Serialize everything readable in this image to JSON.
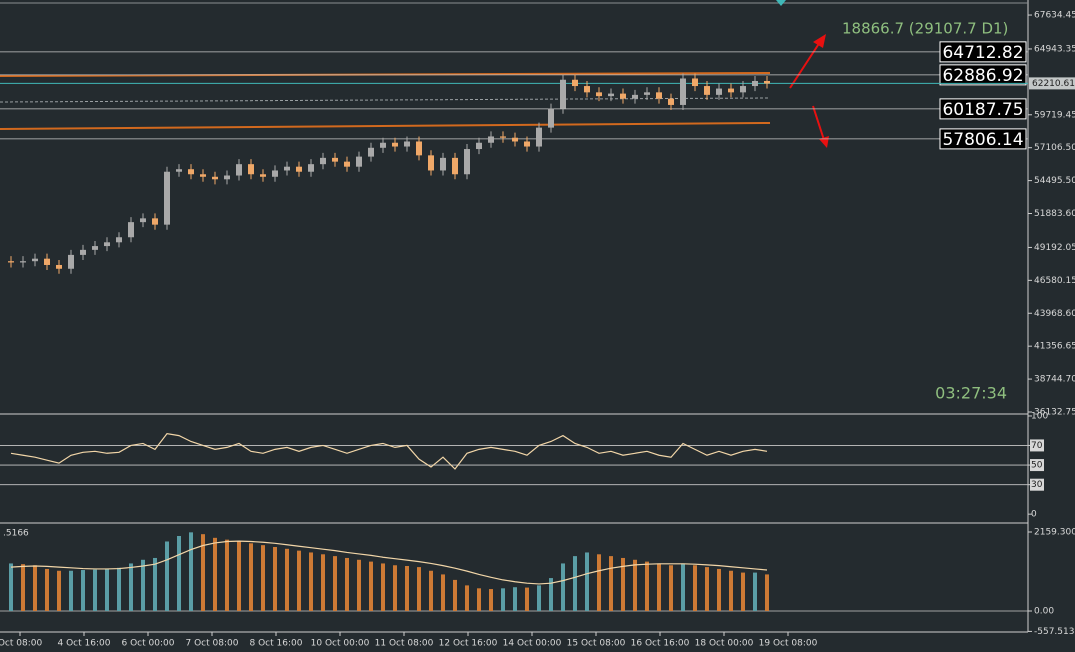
{
  "chart_data": [
    {
      "type": "candlestick",
      "annotation": "18866.7 (29107.7 D1)",
      "timer": "03:27:34",
      "ylim": [
        35974,
        68828
      ],
      "yticks": [
        67634.45,
        64943.35,
        {
          "value": 59719.45,
          "label": "59719.45"
        },
        {
          "value": 57106.5,
          "label": "57106.50"
        },
        {
          "value": 54495.5,
          "label": "54495.50"
        },
        {
          "value": 51883.6,
          "label": "51883.60"
        },
        49192.05,
        46580.15,
        {
          "value": 43968.6,
          "label": "43968.60"
        },
        41356.65,
        {
          "value": 38744.7,
          "label": "38744.70"
        },
        36132.75
      ],
      "current_price": 62210.61,
      "levels": [
        64712.82,
        62886.92,
        60187.75,
        57806.14
      ],
      "bull_color": "#a9a9a9",
      "bear_color": "#f0a868",
      "price_line_color": "#3fb8b8",
      "open": [
        48100,
        48000,
        48100,
        48300,
        47800,
        47500,
        48600,
        49000,
        49300,
        49600,
        50000,
        51200,
        51500,
        51000,
        55200,
        55400,
        55000,
        54800,
        54600,
        54900,
        55800,
        55000,
        54800,
        55300,
        55600,
        55200,
        55800,
        56300,
        56000,
        55600,
        56400,
        57100,
        57500,
        57200,
        57600,
        56500,
        55300,
        56300,
        55000,
        57000,
        57500,
        58000,
        57900,
        57600,
        57200,
        58700,
        60200,
        62500,
        62000,
        61500,
        61200,
        61400,
        61000,
        61300,
        61500,
        61000,
        60500,
        62600,
        62000,
        61300,
        61800,
        61500,
        62000,
        62400
      ],
      "high": [
        48500,
        48500,
        48700,
        48700,
        48200,
        49000,
        49400,
        49700,
        50000,
        50400,
        51600,
        51900,
        51900,
        55600,
        55800,
        55800,
        55400,
        55200,
        55300,
        56200,
        56200,
        55400,
        55700,
        56000,
        56000,
        56200,
        56700,
        56700,
        56400,
        56800,
        57500,
        57900,
        57900,
        58000,
        58000,
        56900,
        56700,
        56700,
        57400,
        57900,
        58400,
        58400,
        58300,
        58000,
        59100,
        60600,
        62900,
        62900,
        62400,
        61900,
        61800,
        61800,
        61700,
        61900,
        61900,
        61400,
        63000,
        63000,
        62400,
        62200,
        62200,
        62400,
        62800,
        62800
      ],
      "low": [
        47600,
        47600,
        47700,
        47400,
        47100,
        47100,
        48200,
        48600,
        48900,
        49200,
        49600,
        50800,
        50600,
        50600,
        54800,
        54600,
        54400,
        54200,
        54200,
        54500,
        54600,
        54400,
        54400,
        54900,
        54800,
        54800,
        55400,
        55600,
        55200,
        55200,
        56000,
        56700,
        56800,
        56800,
        56100,
        54900,
        54900,
        54600,
        54600,
        56600,
        57100,
        57500,
        57200,
        56800,
        56800,
        58300,
        59800,
        61600,
        61100,
        60800,
        60800,
        60600,
        60600,
        60900,
        60600,
        60100,
        60100,
        61600,
        60900,
        60900,
        61100,
        61100,
        61600,
        61800
      ],
      "close": [
        48000,
        48100,
        48300,
        47800,
        47500,
        48600,
        49000,
        49300,
        49600,
        50000,
        51200,
        51500,
        51000,
        55200,
        55400,
        55000,
        54800,
        54600,
        54900,
        55800,
        55000,
        54800,
        55300,
        55600,
        55200,
        55800,
        56300,
        56000,
        55600,
        56400,
        57100,
        57500,
        57200,
        57600,
        56500,
        55300,
        56300,
        55000,
        57000,
        57500,
        58000,
        57900,
        57600,
        57200,
        58700,
        60200,
        62500,
        62000,
        61500,
        61200,
        61400,
        61000,
        61300,
        61500,
        61000,
        60500,
        62600,
        62000,
        61300,
        61800,
        61500,
        62000,
        62400,
        62200
      ]
    },
    {
      "type": "line",
      "ylim": [
        -8,
        101
      ],
      "yticks": [
        100,
        70,
        50,
        30,
        0
      ],
      "levels": [
        70,
        50,
        30
      ],
      "color": "#f2d6a8",
      "values": [
        62,
        60,
        58,
        55,
        52,
        60,
        63,
        64,
        62,
        63,
        70,
        72,
        66,
        82,
        80,
        74,
        70,
        66,
        68,
        72,
        64,
        62,
        66,
        68,
        64,
        68,
        70,
        66,
        62,
        66,
        70,
        72,
        68,
        70,
        56,
        48,
        58,
        46,
        62,
        66,
        68,
        66,
        64,
        60,
        70,
        74,
        80,
        72,
        68,
        62,
        64,
        60,
        62,
        64,
        60,
        58,
        72,
        66,
        60,
        64,
        60,
        64,
        66,
        64
      ]
    },
    {
      "type": "bar",
      "label": ".5166",
      "ylim": [
        -574,
        2378
      ],
      "yticks": [
        2159.3008,
        {
          "value": 0,
          "label": "0.00"
        },
        -557.5132
      ],
      "up_color": "#5b9ea6",
      "down_color": "#cd7a35",
      "signal_color": "#f2d6a8",
      "values": [
        1300,
        1280,
        1250,
        1150,
        1100,
        1100,
        1120,
        1130,
        1150,
        1180,
        1300,
        1400,
        1450,
        1900,
        2050,
        2150,
        2100,
        2000,
        1950,
        1900,
        1850,
        1800,
        1750,
        1700,
        1650,
        1600,
        1550,
        1500,
        1450,
        1400,
        1350,
        1300,
        1250,
        1230,
        1200,
        1100,
        1000,
        850,
        700,
        620,
        600,
        620,
        650,
        640,
        700,
        900,
        1300,
        1500,
        1600,
        1550,
        1500,
        1450,
        1400,
        1350,
        1300,
        1250,
        1300,
        1250,
        1200,
        1150,
        1100,
        1050,
        1050,
        1000
      ],
      "signal": [
        1200,
        1220,
        1230,
        1220,
        1200,
        1180,
        1160,
        1150,
        1150,
        1160,
        1190,
        1230,
        1280,
        1400,
        1540,
        1680,
        1790,
        1860,
        1900,
        1910,
        1900,
        1880,
        1850,
        1810,
        1770,
        1730,
        1690,
        1650,
        1600,
        1560,
        1520,
        1470,
        1430,
        1390,
        1350,
        1300,
        1240,
        1170,
        1090,
        1000,
        920,
        850,
        800,
        760,
        740,
        760,
        830,
        920,
        1020,
        1100,
        1170,
        1220,
        1260,
        1280,
        1290,
        1290,
        1290,
        1280,
        1260,
        1240,
        1210,
        1180,
        1150,
        1120
      ]
    }
  ],
  "time_labels": [
    "Oct 08:00",
    "4 Oct 16:00",
    "6 Oct 00:00",
    "7 Oct 08:00",
    "8 Oct 16:00",
    "10 Oct 00:00",
    "11 Oct 08:00",
    "12 Oct 16:00",
    "14 Oct 00:00",
    "15 Oct 08:00",
    "16 Oct 16:00",
    "18 Oct 00:00",
    "19 Oct 08:00"
  ]
}
